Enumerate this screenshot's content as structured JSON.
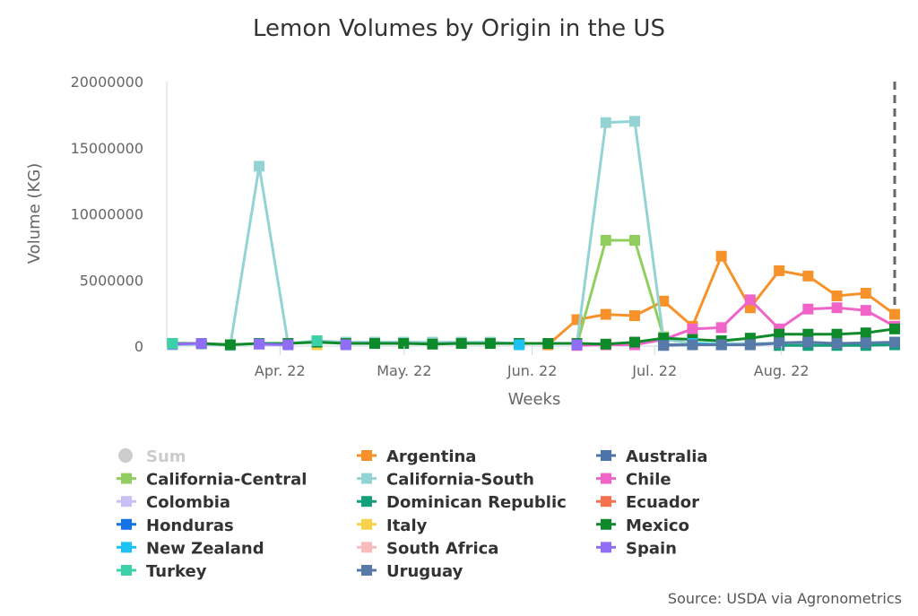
{
  "chart_data": {
    "type": "line",
    "title": "Lemon Volumes by Origin in the US",
    "x_label": "Weeks",
    "y_label": "Volume (KG)",
    "source": "Source: USDA via Agronometrics",
    "x": [
      0,
      1,
      2,
      3,
      4,
      5,
      6,
      7,
      8,
      9,
      10,
      11,
      12,
      13,
      14,
      15,
      16,
      17,
      18,
      19,
      20,
      21,
      22,
      23,
      24,
      25
    ],
    "xlim": [
      -0.2,
      25
    ],
    "xticks": [
      {
        "value": 3.72,
        "label": "Apr. 22"
      },
      {
        "value": 8.02,
        "label": "May. 22"
      },
      {
        "value": 12.45,
        "label": "Jun. 22"
      },
      {
        "value": 16.69,
        "label": "Jul. 22"
      },
      {
        "value": 21.08,
        "label": "Aug. 22"
      }
    ],
    "ylim": [
      0,
      20000000
    ],
    "yticks": [
      0,
      5000000,
      10000000,
      15000000,
      20000000
    ],
    "grid": false,
    "series": [
      {
        "name": "Sum",
        "color": "#cccccc",
        "visible": false,
        "values": [
          null,
          null,
          null,
          null,
          null,
          null,
          null,
          null,
          null,
          null,
          null,
          null,
          null,
          null,
          null,
          null,
          null,
          null,
          null,
          null,
          null,
          null,
          null,
          null,
          null,
          null
        ]
      },
      {
        "name": "Argentina",
        "color": "#f7922a",
        "values": [
          null,
          null,
          null,
          null,
          null,
          null,
          null,
          null,
          null,
          null,
          null,
          null,
          null,
          100000,
          2000000,
          2400000,
          2300000,
          3400000,
          1500000,
          6800000,
          2900000,
          5700000,
          5300000,
          3800000,
          4000000,
          2400000
        ]
      },
      {
        "name": "Australia",
        "color": "#4d74a8",
        "values": [
          null,
          null,
          null,
          null,
          null,
          null,
          null,
          null,
          null,
          null,
          null,
          null,
          null,
          null,
          null,
          null,
          null,
          100000,
          100000,
          100000,
          100000,
          200000,
          200000,
          100000,
          200000,
          200000
        ]
      },
      {
        "name": "California-Central",
        "color": "#90cf5f",
        "values": [
          null,
          null,
          null,
          null,
          null,
          null,
          null,
          null,
          null,
          null,
          null,
          null,
          null,
          null,
          100000,
          8000000,
          8000000,
          700000,
          null,
          null,
          null,
          null,
          null,
          null,
          null,
          null
        ]
      },
      {
        "name": "California-South",
        "color": "#94d3d3",
        "values": [
          100000,
          150000,
          50000,
          13600000,
          200000,
          400000,
          300000,
          300000,
          300000,
          300000,
          300000,
          300000,
          200000,
          200000,
          200000,
          16900000,
          17000000,
          500000,
          200000,
          200000,
          200000,
          200000,
          200000,
          200000,
          200000,
          200000
        ]
      },
      {
        "name": "Chile",
        "color": "#f064c8",
        "values": [
          null,
          null,
          null,
          null,
          null,
          null,
          null,
          null,
          null,
          null,
          null,
          null,
          null,
          null,
          50000,
          100000,
          100000,
          500000,
          1300000,
          1400000,
          3500000,
          1300000,
          2800000,
          2900000,
          2700000,
          1500000
        ]
      },
      {
        "name": "Colombia",
        "color": "#c9c0f5",
        "values": [
          null,
          null,
          null,
          null,
          null,
          null,
          null,
          null,
          null,
          null,
          null,
          null,
          null,
          null,
          null,
          null,
          null,
          null,
          null,
          null,
          null,
          null,
          null,
          null,
          null,
          null
        ]
      },
      {
        "name": "Dominican Republic",
        "color": "#14a07b",
        "values": [
          null,
          null,
          null,
          null,
          null,
          null,
          null,
          null,
          null,
          null,
          null,
          null,
          null,
          null,
          null,
          null,
          null,
          null,
          null,
          null,
          null,
          50000,
          50000,
          50000,
          50000,
          100000
        ]
      },
      {
        "name": "Ecuador",
        "color": "#f5714e",
        "values": [
          null,
          null,
          null,
          null,
          null,
          null,
          null,
          null,
          null,
          null,
          null,
          null,
          null,
          null,
          null,
          null,
          null,
          null,
          null,
          null,
          null,
          null,
          null,
          null,
          null,
          null
        ]
      },
      {
        "name": "Honduras",
        "color": "#1473e6",
        "values": [
          null,
          null,
          null,
          null,
          null,
          null,
          null,
          null,
          null,
          null,
          null,
          null,
          null,
          null,
          null,
          null,
          null,
          null,
          null,
          null,
          null,
          null,
          null,
          null,
          null,
          null
        ]
      },
      {
        "name": "Italy",
        "color": "#f7d24a",
        "values": [
          null,
          null,
          null,
          null,
          null,
          100000,
          null,
          null,
          null,
          null,
          null,
          null,
          null,
          null,
          null,
          null,
          null,
          null,
          null,
          null,
          null,
          null,
          null,
          null,
          null,
          null
        ]
      },
      {
        "name": "Mexico",
        "color": "#0f8a2a",
        "values": [
          200000,
          200000,
          100000,
          200000,
          200000,
          300000,
          200000,
          200000,
          200000,
          150000,
          200000,
          200000,
          200000,
          200000,
          200000,
          150000,
          300000,
          600000,
          500000,
          400000,
          600000,
          900000,
          900000,
          900000,
          1000000,
          1300000
        ]
      },
      {
        "name": "New Zealand",
        "color": "#1ec3f5",
        "values": [
          null,
          null,
          null,
          null,
          null,
          null,
          null,
          null,
          null,
          null,
          null,
          null,
          100000,
          null,
          null,
          null,
          null,
          null,
          200000,
          100000,
          null,
          null,
          null,
          null,
          null,
          null
        ]
      },
      {
        "name": "South Africa",
        "color": "#f8bcbc",
        "values": [
          null,
          null,
          null,
          null,
          null,
          null,
          null,
          null,
          null,
          null,
          null,
          null,
          null,
          null,
          null,
          null,
          null,
          null,
          null,
          null,
          null,
          null,
          null,
          null,
          null,
          null
        ]
      },
      {
        "name": "Spain",
        "color": "#8f6ef5",
        "values": [
          150000,
          200000,
          null,
          150000,
          100000,
          null,
          100000,
          null,
          null,
          null,
          null,
          null,
          null,
          null,
          100000,
          null,
          null,
          null,
          null,
          null,
          null,
          null,
          null,
          null,
          null,
          null
        ]
      },
      {
        "name": "Turkey",
        "color": "#3cd0a8",
        "values": [
          200000,
          null,
          null,
          null,
          null,
          400000,
          null,
          null,
          null,
          null,
          null,
          null,
          null,
          null,
          null,
          null,
          null,
          null,
          null,
          null,
          null,
          null,
          null,
          null,
          null,
          null
        ]
      },
      {
        "name": "Uruguay",
        "color": "#577aa8",
        "values": [
          null,
          null,
          null,
          null,
          null,
          null,
          null,
          null,
          null,
          null,
          null,
          null,
          null,
          null,
          null,
          null,
          null,
          50000,
          100000,
          100000,
          100000,
          250000,
          300000,
          200000,
          250000,
          300000
        ]
      }
    ]
  }
}
